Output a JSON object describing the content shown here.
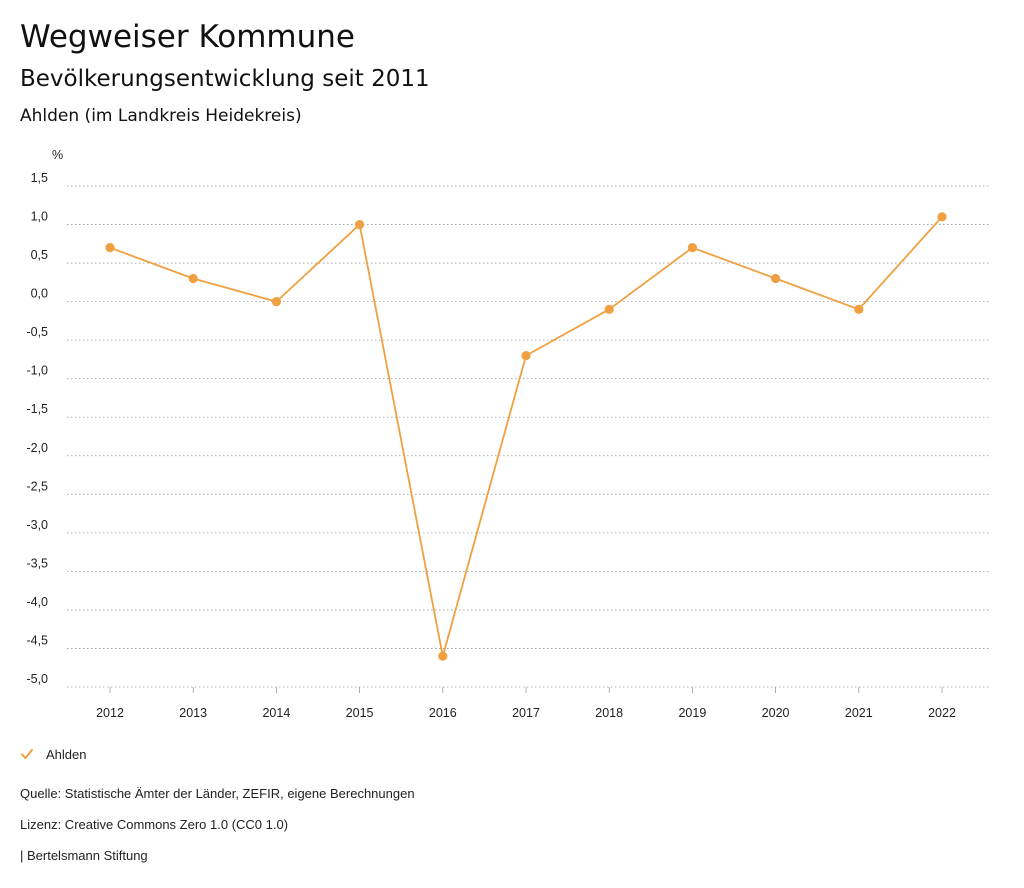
{
  "header": {
    "title": "Wegweiser Kommune",
    "subtitle": "Bevölkerungsentwicklung seit 2011",
    "region": "Ahlden (im Landkreis Heidekreis)"
  },
  "legend": {
    "items": [
      {
        "label": "Ahlden",
        "icon": "check-icon",
        "color": "#f0a040"
      }
    ]
  },
  "footer": {
    "source": "Quelle: Statistische Ämter der Länder, ZEFIR, eigene Berechnungen",
    "license": "Lizenz: Creative Commons Zero 1.0 (CC0 1.0)",
    "publisher": "| Bertelsmann Stiftung"
  },
  "colors": {
    "series": "#f0a040",
    "grid": "#9a9a9a",
    "text": "#222222"
  },
  "chart_data": {
    "type": "line",
    "title": "",
    "ylabel": "%",
    "xlabel": "",
    "x": [
      "2012",
      "2013",
      "2014",
      "2015",
      "2016",
      "2017",
      "2018",
      "2019",
      "2020",
      "2021",
      "2022"
    ],
    "yticks": [
      {
        "value": 1.5,
        "label": "1,5"
      },
      {
        "value": 1.0,
        "label": "1,0"
      },
      {
        "value": 0.5,
        "label": "0,5"
      },
      {
        "value": 0.0,
        "label": "0,0"
      },
      {
        "value": -0.5,
        "label": "-0,5"
      },
      {
        "value": -1.0,
        "label": "-1,0"
      },
      {
        "value": -1.5,
        "label": "-1,5"
      },
      {
        "value": -2.0,
        "label": "-2,0"
      },
      {
        "value": -2.5,
        "label": "-2,5"
      },
      {
        "value": -3.0,
        "label": "-3,0"
      },
      {
        "value": -3.5,
        "label": "-3,5"
      },
      {
        "value": -4.0,
        "label": "-4,0"
      },
      {
        "value": -4.5,
        "label": "-4,5"
      },
      {
        "value": -5.0,
        "label": "-5,0"
      }
    ],
    "ylim": [
      -5.0,
      1.5
    ],
    "grid": true,
    "legend_position": "bottom-left",
    "series": [
      {
        "name": "Ahlden",
        "values": [
          0.7,
          0.3,
          0.0,
          1.0,
          -4.6,
          -0.7,
          -0.1,
          0.7,
          0.3,
          -0.1,
          1.1
        ]
      }
    ]
  }
}
